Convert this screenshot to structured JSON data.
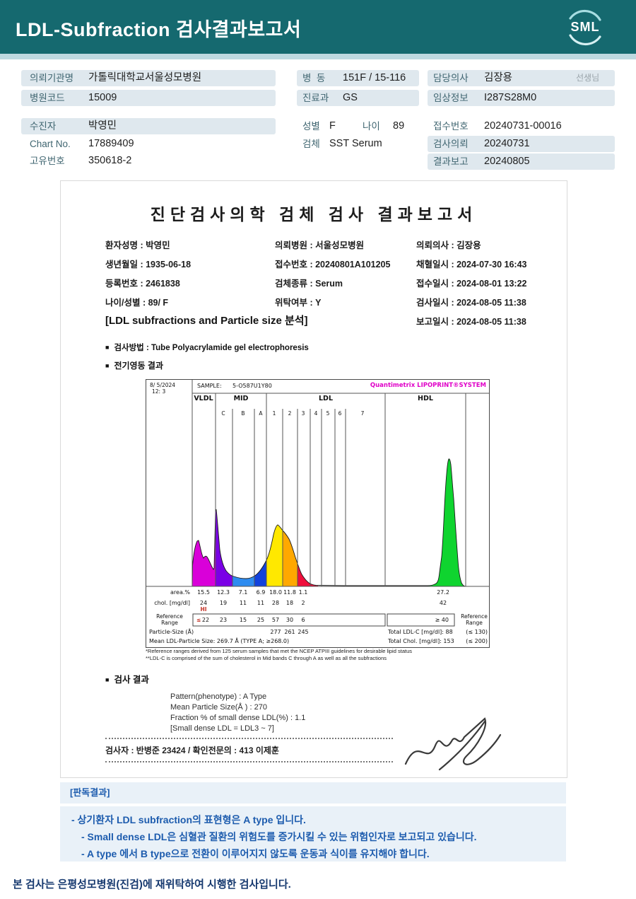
{
  "header": {
    "title": "LDL-Subfraction 검사결과보고서",
    "logo": "SML"
  },
  "info": {
    "org_label": "의뢰기관명",
    "org": "가톨릭대학교서울성모병원",
    "hosp_code_label": "병원코드",
    "hosp_code": "15009",
    "patient_label": "수진자",
    "patient": "박영민",
    "chart_label": "Chart No.",
    "chart_no": "17889409",
    "uid_label": "고유번호",
    "uid": "350618-2",
    "ward_label": "병  동",
    "ward": "151F / 15-116",
    "dept_label": "진료과",
    "dept": "GS",
    "sex_label": "성별",
    "sex": "F",
    "age_label": "나이",
    "age": "89",
    "specimen_label": "검체",
    "specimen": "SST Serum",
    "doctor_label": "담당의사",
    "doctor": "김장용",
    "honorific": "선생님",
    "clinical_label": "임상정보",
    "clinical": "I287S28M0",
    "receipt_label": "접수번호",
    "receipt": "20240731-00016",
    "request_label": "검사의뢰",
    "request": "20240731",
    "report_label": "결과보고",
    "report": "20240805"
  },
  "doc": {
    "title": "진단검사의학 검체 검사 결과보고서",
    "col1": [
      "환자성명 : 박영민",
      "생년월일 : 1935-06-18",
      "등록번호 : 2461838",
      "나이/성별 : 89/ F"
    ],
    "col2": [
      "의뢰병원 : 서울성모병원",
      "접수번호 : 20240801A101205",
      "검체종류 : Serum",
      "위탁여부 : Y"
    ],
    "col3": [
      "의뢰의사 : 김장용",
      "채혈일시 : 2024-07-30 16:43",
      "접수일시 : 2024-08-01 13:22",
      "검사일시 : 2024-08-05 11:38",
      "보고일시 : 2024-08-05 11:38"
    ],
    "section_title": "[LDL subfractions and Particle size 분석]",
    "method_bullet": "검사방법 : Tube Polyacrylamide gel electrophoresis",
    "electro_bullet": "전기영동 결과",
    "footnote1": "*Reference ranges derived from 125 serum samples that met the NCEP ATPIII guidelines for desirable lipid status",
    "footnote2": "**LDL-C is comprised of the sum of cholesterol in Mid bands C through A as well as all the subfractions",
    "result_heading": "검사 결과",
    "result_lines": [
      "Pattern(phenotype) : A Type",
      "Mean Particle Size(Å ) : 270",
      "Fraction % of small dense LDL(%) : 1.1",
      "[Small dense LDL = LDL3 ~ 7]"
    ],
    "examiner": "검사자 : 반병준 23424  /  확인전문의 : 413 이제훈"
  },
  "chart_data": {
    "type": "area",
    "title": "LDL subfraction electrophoresis scan",
    "instrument": "Quantimetrix LIPOPRINT®SYSTEM",
    "scan_date": "8/ 5/2024",
    "scan_time": "12: 3",
    "sample_label": "SAMPLE:",
    "sample_id": "5-O587U1Y80",
    "groups": [
      "VLDL",
      "MID",
      "LDL",
      "HDL"
    ],
    "band_labels": [
      "C",
      "B",
      "A",
      "1",
      "2",
      "3",
      "4",
      "5",
      "6",
      "7"
    ],
    "row_labels": {
      "area": "area.%",
      "chol": "chol. [mg/dl]",
      "ref": "Reference\nRange",
      "particle": "Particle-Size (Å)"
    },
    "fractions": [
      {
        "name": "VLDL",
        "area_pct": "15.5",
        "chol": "24",
        "ref": "22",
        "flag": "HI"
      },
      {
        "name": "MID C",
        "area_pct": "12.3",
        "chol": "19",
        "ref": "23"
      },
      {
        "name": "MID B",
        "area_pct": "7.1",
        "chol": "11",
        "ref": "15"
      },
      {
        "name": "MID A",
        "area_pct": "6.9",
        "chol": "11",
        "ref": "25"
      },
      {
        "name": "LDL 1",
        "area_pct": "18.0",
        "chol": "28",
        "ref": "57"
      },
      {
        "name": "LDL 2",
        "area_pct": "11.8",
        "chol": "18",
        "ref": "30"
      },
      {
        "name": "LDL 3",
        "area_pct": "1.1",
        "chol": "2",
        "ref": "6"
      },
      {
        "name": "HDL",
        "area_pct": "27.2",
        "chol": "42",
        "ref": "≥ 40"
      }
    ],
    "ref_prefix": "≤",
    "particle_sizes": [
      "277",
      "261",
      "245"
    ],
    "total_ldl_c": "Total LDL-C [mg/dl]:  88",
    "total_ldl_ref": "(≤ 130)",
    "mean_particle": "Mean LDL-Particle Size:   269.7 Å   (TYPE A; ≥268.0)",
    "total_chol": "Total Chol. [mg/dl]:  153",
    "total_chol_ref": "(≤ 200)",
    "colors": {
      "vldl": "#d900d9",
      "mid_c": "#7a00e6",
      "mid_b": "#2e8cf0",
      "mid_a": "#1242dd",
      "ldl1": "#ffe800",
      "ldl2": "#ffa800",
      "ldl3": "#ef0f3c",
      "hdl": "#0fd42f"
    }
  },
  "interpretation": {
    "heading": "[판독결과]",
    "lines": [
      "- 상기환자 LDL subfraction의 표현형은 A type 입니다.",
      "-  Small dense LDL은 심혈관 질환의 위험도를 증가시킬 수 있는 위험인자로 보고되고 있습니다.",
      "-  A type 에서 B type으로 전환이 이루어지지 않도록 운동과 식이를 유지해야 합니다."
    ]
  },
  "footer_note": "본 검사는 은평성모병원(진검)에 재위탁하여 시행한 검사입니다."
}
